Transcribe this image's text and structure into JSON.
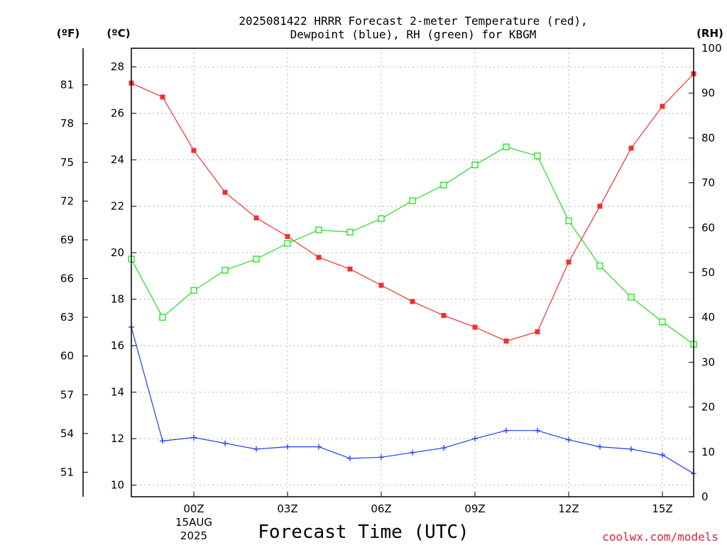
{
  "chart_data": {
    "type": "line",
    "title_line1": "2025081422 HRRR Forecast 2-meter Temperature (red),",
    "title_line2": "Dewpoint (blue), RH (green) for KBGM",
    "xlabel": "Forecast Time (UTC)",
    "credit": "coolwx.com/models",
    "unit_f": "(ºF)",
    "unit_c": "(ºC)",
    "unit_rh": "(RH)",
    "x": [
      "22Z",
      "23Z",
      "00Z",
      "01Z",
      "02Z",
      "03Z",
      "04Z",
      "05Z",
      "06Z",
      "07Z",
      "08Z",
      "09Z",
      "10Z",
      "11Z",
      "12Z",
      "13Z",
      "14Z",
      "15Z",
      "16Z"
    ],
    "x_tick_labels": [
      {
        "label": "00Z",
        "date_line1": "15AUG",
        "date_line2": "2025"
      },
      {
        "label": "03Z"
      },
      {
        "label": "06Z"
      },
      {
        "label": "09Z"
      },
      {
        "label": "12Z"
      },
      {
        "label": "15Z"
      }
    ],
    "y_c_ticks": [
      "10",
      "12",
      "14",
      "16",
      "18",
      "20",
      "22",
      "24",
      "26",
      "28"
    ],
    "y_f_ticks": [
      "51",
      "54",
      "57",
      "60",
      "63",
      "66",
      "69",
      "72",
      "75",
      "78",
      "81"
    ],
    "y_rh_ticks": [
      "0",
      "10",
      "20",
      "30",
      "40",
      "50",
      "60",
      "70",
      "80",
      "90",
      "100"
    ],
    "ylim_c": [
      9.5,
      28.8
    ],
    "ylim_rh": [
      0,
      100
    ],
    "series": [
      {
        "name": "Temperature",
        "color": "#f03030",
        "marker": "filled-square",
        "values": [
          27.3,
          26.7,
          24.4,
          22.6,
          21.5,
          20.7,
          19.8,
          19.3,
          18.6,
          17.9,
          17.3,
          16.8,
          16.2,
          16.6,
          19.6,
          22.0,
          24.5,
          26.3,
          27.7
        ]
      },
      {
        "name": "Dewpoint",
        "color": "#1e3cf0",
        "marker": "plus",
        "values": [
          16.8,
          11.9,
          12.05,
          11.8,
          11.55,
          11.65,
          11.65,
          11.15,
          11.2,
          11.4,
          11.6,
          12.0,
          12.35,
          12.35,
          11.95,
          11.65,
          11.55,
          11.3,
          10.5
        ]
      },
      {
        "name": "RH",
        "color": "#22dd22",
        "marker": "open-square",
        "values": [
          53,
          40,
          46,
          50.5,
          53,
          56.5,
          59.5,
          59,
          62,
          66,
          69.5,
          74,
          78,
          76,
          61.5,
          51.5,
          44.5,
          39,
          34
        ]
      }
    ]
  }
}
